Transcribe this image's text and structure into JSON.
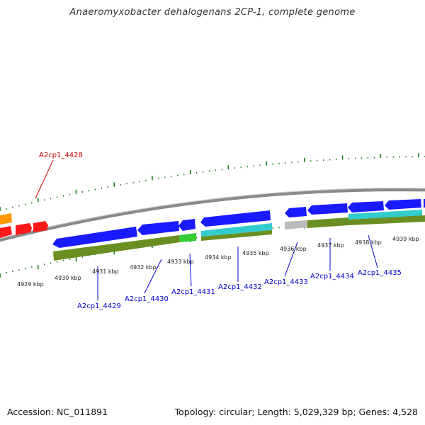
{
  "title": "Anaeromyxobacter dehalogenans 2CP-1, complete genome",
  "footer": {
    "accession": "Accession: NC_011891",
    "info": "Topology: circular; Length: 5,029,329 bp; Genes: 4,528"
  },
  "colors": {
    "cds_blue": "#1a1aff",
    "rna_red": "#ff1a1a",
    "orange": "#ff9900",
    "green_bright": "#33cc33",
    "cyan": "#33cccc",
    "gray_gene": "#bbbbbb",
    "olive": "#6b8e23",
    "tick_green": "#1a7a1a",
    "backbone": "#888888",
    "label_blue": "#0000cc",
    "label_red": "#cc0000"
  },
  "kbp_ticks": [
    {
      "label": "4929 kbp"
    },
    {
      "label": "4930 kbp"
    },
    {
      "label": "4931 kbp"
    },
    {
      "label": "4932 kbp"
    },
    {
      "label": "4933 kbp"
    },
    {
      "label": "4934 kbp"
    },
    {
      "label": "4935 kbp"
    },
    {
      "label": "4936 kbp"
    },
    {
      "label": "4937 kbp"
    },
    {
      "label": "4938 kbp"
    },
    {
      "label": "4939 kbp"
    }
  ],
  "gene_labels": [
    {
      "name": "A2cp1_4428",
      "type": "rna"
    },
    {
      "name": "A2cp1_4429",
      "type": "cds"
    },
    {
      "name": "A2cp1_4430",
      "type": "cds"
    },
    {
      "name": "A2cp1_4431",
      "type": "cds"
    },
    {
      "name": "A2cp1_4432",
      "type": "cds"
    },
    {
      "name": "A2cp1_4433",
      "type": "cds"
    },
    {
      "name": "A2cp1_4434",
      "type": "cds"
    },
    {
      "name": "A2cp1_4435",
      "type": "cds"
    }
  ]
}
